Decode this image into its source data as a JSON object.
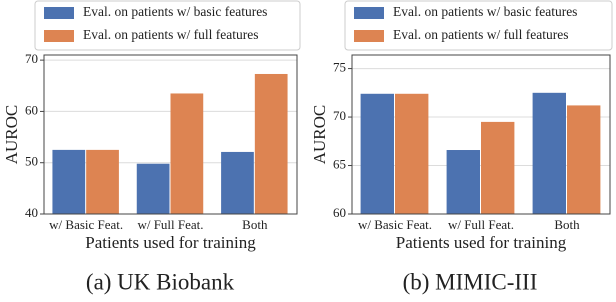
{
  "chart_data": [
    {
      "type": "bar",
      "caption": "(a) UK Biobank",
      "xlabel": "Patients used for training",
      "ylabel": "AUROC",
      "categories": [
        "w/ Basic Feat.",
        "w/ Full Feat.",
        "Both"
      ],
      "series": [
        {
          "name": "Eval. on patients w/ basic features",
          "color": "#4c72b0",
          "values": [
            52.5,
            49.8,
            52.1
          ]
        },
        {
          "name": "Eval. on patients w/ full features",
          "color": "#dd8452",
          "values": [
            52.5,
            63.5,
            67.3
          ]
        }
      ],
      "ylim": [
        40,
        71
      ],
      "yticks": [
        40,
        50,
        60,
        70
      ],
      "grid": true
    },
    {
      "type": "bar",
      "caption": "(b) MIMIC-III",
      "xlabel": "Patients used for training",
      "ylabel": "AUROC",
      "categories": [
        "w/ Basic Feat.",
        "w/ Full Feat.",
        "Both"
      ],
      "series": [
        {
          "name": "Eval. on patients w/ basic features",
          "color": "#4c72b0",
          "values": [
            72.4,
            66.6,
            72.5
          ]
        },
        {
          "name": "Eval. on patients w/ full features",
          "color": "#dd8452",
          "values": [
            72.4,
            69.5,
            71.2
          ]
        }
      ],
      "ylim": [
        60,
        76.4
      ],
      "yticks": [
        60,
        65,
        70,
        75
      ],
      "grid": true
    }
  ]
}
